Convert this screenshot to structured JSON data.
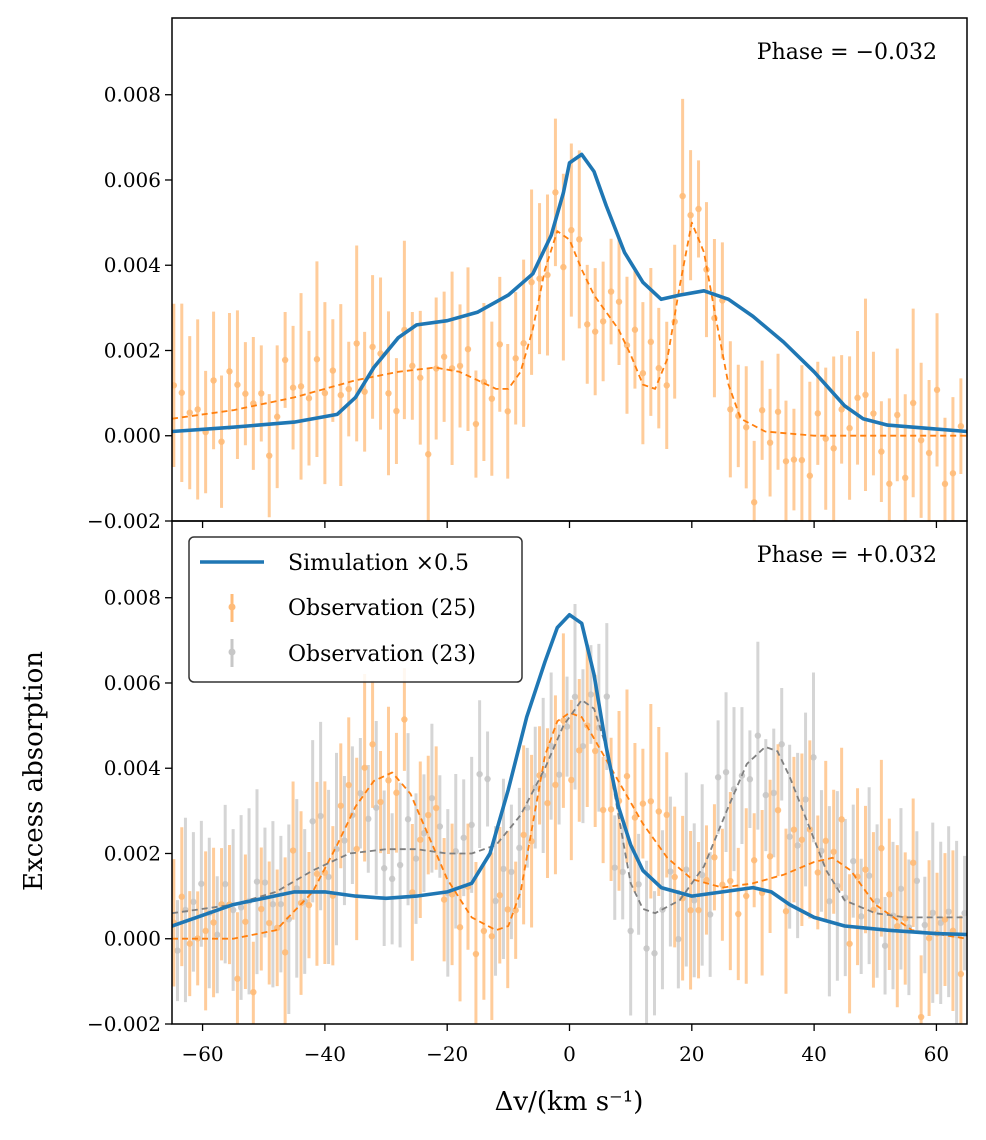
{
  "chart_data": {
    "type": "line",
    "xlabel": "Δv/(km s⁻¹)",
    "ylabel": "Excess absorption",
    "xlim": [
      -65,
      65
    ],
    "ylim": [
      -0.002,
      0.0098
    ],
    "x_ticks": [
      -60,
      -40,
      -20,
      0,
      20,
      40,
      60
    ],
    "x_tick_labels": [
      "−60",
      "−40",
      "−20",
      "0",
      "20",
      "40",
      "60"
    ],
    "y_ticks": [
      -0.002,
      0.0,
      0.002,
      0.004,
      0.006,
      0.008
    ],
    "y_tick_labels": [
      "−0.002",
      "0.000",
      "0.002",
      "0.004",
      "0.006",
      "0.008"
    ],
    "colors": {
      "simulation": "#1f77b4",
      "obs25": "#ff7f0e",
      "obs23": "#7f7f7f",
      "obs25_light": "#ffbb78",
      "obs23_light": "#c7c7c7"
    },
    "legend": {
      "placement": "upper-left of lower panel",
      "entries": [
        "Simulation ×0.5",
        "Observation (25)",
        "Observation (23)"
      ]
    },
    "panels": [
      {
        "phase_label": "Phase = −0.032",
        "series": [
          {
            "name": "Simulation ×0.5",
            "style": "solid",
            "x": [
              -65,
              -55,
              -45,
              -38,
              -35,
              -32,
              -28,
              -25,
              -20,
              -15,
              -10,
              -6,
              -3,
              -1,
              0,
              2,
              4,
              6,
              9,
              12,
              15,
              18,
              22,
              26,
              30,
              35,
              40,
              45,
              48,
              52,
              58,
              65
            ],
            "y": [
              0.0001,
              0.0002,
              0.00032,
              0.0005,
              0.0009,
              0.0016,
              0.0023,
              0.0026,
              0.0027,
              0.0029,
              0.0033,
              0.0038,
              0.0047,
              0.0057,
              0.0064,
              0.0066,
              0.0062,
              0.0054,
              0.0043,
              0.0036,
              0.0032,
              0.0033,
              0.0034,
              0.0032,
              0.0028,
              0.0022,
              0.0015,
              0.0007,
              0.0004,
              0.00025,
              0.00018,
              0.0001
            ]
          },
          {
            "name": "Observation (25) fit",
            "style": "dashed",
            "x": [
              -65,
              -55,
              -45,
              -35,
              -28,
              -22,
              -18,
              -15,
              -12,
              -10,
              -8,
              -6,
              -4,
              -2,
              0,
              2,
              4,
              6,
              8,
              10,
              12,
              14,
              16,
              18,
              20,
              22,
              24,
              26,
              28,
              32,
              40,
              65
            ],
            "y": [
              0.0004,
              0.0006,
              0.0009,
              0.0013,
              0.0015,
              0.0016,
              0.0015,
              0.0013,
              0.0011,
              0.0011,
              0.0015,
              0.0025,
              0.0039,
              0.0048,
              0.0046,
              0.0039,
              0.0033,
              0.0029,
              0.0025,
              0.0019,
              0.0012,
              0.0011,
              0.0018,
              0.0035,
              0.005,
              0.0043,
              0.0027,
              0.0012,
              0.0004,
              0.0001,
              0.0,
              0.0
            ]
          }
        ]
      },
      {
        "phase_label": "Phase = +0.032",
        "series": [
          {
            "name": "Simulation ×0.5",
            "style": "solid",
            "x": [
              -65,
              -55,
              -45,
              -40,
              -35,
              -30,
              -25,
              -20,
              -16,
              -13,
              -10,
              -7,
              -4,
              -2,
              0,
              2,
              4,
              6,
              8,
              10,
              12,
              15,
              20,
              25,
              30,
              33,
              36,
              40,
              45,
              52,
              60,
              65
            ],
            "y": [
              0.0003,
              0.0008,
              0.0011,
              0.0011,
              0.001,
              0.00095,
              0.001,
              0.0011,
              0.0013,
              0.002,
              0.0035,
              0.0052,
              0.0065,
              0.0073,
              0.0076,
              0.0074,
              0.0062,
              0.0045,
              0.0031,
              0.0022,
              0.0016,
              0.0012,
              0.001,
              0.0011,
              0.0012,
              0.0011,
              0.0008,
              0.0005,
              0.0003,
              0.0002,
              0.00012,
              0.0001
            ]
          },
          {
            "name": "Observation (25) fit",
            "style": "dashed",
            "x": [
              -65,
              -55,
              -48,
              -42,
              -38,
              -35,
              -32,
              -29,
              -26,
              -23,
              -20,
              -16,
              -12,
              -10,
              -8,
              -6,
              -4,
              -2,
              0,
              2,
              4,
              8,
              12,
              16,
              20,
              25,
              30,
              35,
              40,
              43,
              46,
              50,
              56,
              65
            ],
            "y": [
              0.0,
              0.0,
              0.0002,
              0.0011,
              0.0022,
              0.0031,
              0.0037,
              0.0039,
              0.0034,
              0.0024,
              0.0014,
              0.0005,
              0.0002,
              0.0003,
              0.0011,
              0.0027,
              0.0043,
              0.0051,
              0.0053,
              0.0052,
              0.0047,
              0.0037,
              0.0027,
              0.0019,
              0.0014,
              0.0012,
              0.0013,
              0.0015,
              0.0018,
              0.0019,
              0.0016,
              0.0008,
              0.0002,
              0.0
            ]
          },
          {
            "name": "Observation (23) fit",
            "style": "dashed",
            "x": [
              -65,
              -55,
              -48,
              -42,
              -36,
              -30,
              -25,
              -20,
              -16,
              -12,
              -8,
              -4,
              -1,
              2,
              4,
              6,
              8,
              10,
              12,
              14,
              18,
              22,
              26,
              29,
              32,
              34,
              36,
              39,
              42,
              45,
              50,
              55,
              65
            ],
            "y": [
              0.0006,
              0.0008,
              0.0011,
              0.0016,
              0.002,
              0.0021,
              0.0021,
              0.002,
              0.002,
              0.0022,
              0.0029,
              0.004,
              0.005,
              0.0056,
              0.0054,
              0.0045,
              0.0029,
              0.0013,
              0.0007,
              0.0006,
              0.0009,
              0.0017,
              0.0031,
              0.0041,
              0.0045,
              0.0044,
              0.0038,
              0.0027,
              0.0016,
              0.0009,
              0.0006,
              0.0005,
              0.0005
            ]
          }
        ]
      }
    ]
  }
}
